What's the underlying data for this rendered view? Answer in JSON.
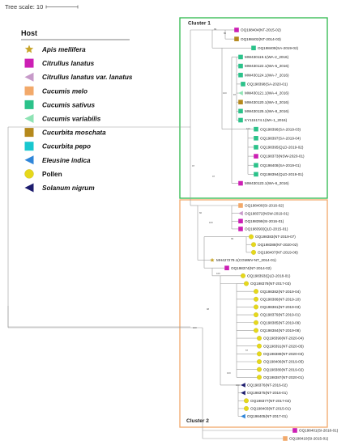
{
  "scale_label": "Tree scale: 10",
  "legend": {
    "title": "Host",
    "items": [
      {
        "label": "Apis mellifera",
        "shape": "star",
        "color": "#c8a52a",
        "italic": true
      },
      {
        "label": "Citrullus lanatus",
        "shape": "square",
        "color": "#cc1fb4",
        "italic": true
      },
      {
        "label": "Citrullus lanatus var. lanatus",
        "shape": "tri-left",
        "color": "#c79ac9",
        "italic": true
      },
      {
        "label": "Cucumis melo",
        "shape": "square",
        "color": "#f2a96a",
        "italic": true
      },
      {
        "label": "Cucumis sativus",
        "shape": "square",
        "color": "#2bc28a",
        "italic": true
      },
      {
        "label": "Cucumis variabilis",
        "shape": "tri-left",
        "color": "#8ee3b4",
        "italic": true
      },
      {
        "label": "Cucurbita moschata",
        "shape": "square",
        "color": "#b5891c",
        "italic": true
      },
      {
        "label": "Cucurbita pepo",
        "shape": "square",
        "color": "#19c7cf",
        "italic": true
      },
      {
        "label": "Eleusine indica",
        "shape": "tri-left",
        "color": "#2f86d9",
        "italic": true
      },
      {
        "label": "Pollen",
        "shape": "circle",
        "color": "#e6d81b",
        "italic": false
      },
      {
        "label": "Solanum nigrum",
        "shape": "tri-left",
        "color": "#1d1c6e",
        "italic": true
      }
    ]
  },
  "clusters": [
    {
      "label": "Cluster 1",
      "color": "#2db84b"
    },
    {
      "label": "Cluster 2",
      "color": "#f0a86a"
    }
  ],
  "tips": [
    {
      "label": "OQ198404(NT-2015-02)",
      "host": "Citrullus lanatus",
      "color": "#cc1fb4",
      "shape": "square"
    },
    {
      "label": "OQ198402(NT-2014-03)",
      "host": "Cucurbita moschata",
      "color": "#b5891c",
      "shape": "square"
    },
    {
      "label": "OQ198409(SA-2019-02)",
      "host": "Cucumis sativus",
      "color": "#2bc28a",
      "shape": "square"
    },
    {
      "label": "MW430119.1(WA-2_2016)",
      "host": "Cucumis sativus",
      "color": "#2bc28a",
      "shape": "square"
    },
    {
      "label": "MW430122.1(WA-5_2016)",
      "host": "Cucumis sativus",
      "color": "#2bc28a",
      "shape": "square"
    },
    {
      "label": "MW430124.1(WA-7_2016)",
      "host": "Cucumis sativus",
      "color": "#2bc28a",
      "shape": "square"
    },
    {
      "label": "OQ198398(SA-2020-01)",
      "host": "Cucumis sativus",
      "color": "#2bc28a",
      "shape": "square"
    },
    {
      "label": "MW430121.1(WA-4_2016)",
      "host": "Cucumis variabilis",
      "color": "#8ee3b4",
      "shape": "tri-left"
    },
    {
      "label": "MW430120.1(WA-3_2016)",
      "host": "Cucurbita moschata",
      "color": "#b5891c",
      "shape": "square"
    },
    {
      "label": "MW430125.1(WA-8_2016)",
      "host": "Cucumis sativus",
      "color": "#2bc28a",
      "shape": "square"
    },
    {
      "label": "KY115174.1(WA-1_2016)",
      "host": "Cucumis sativus",
      "color": "#2bc28a",
      "shape": "square"
    },
    {
      "label": "OQ198396(SA-2019-03)",
      "host": "Cucumis sativus",
      "color": "#2bc28a",
      "shape": "square"
    },
    {
      "label": "OQ198397(SA-2019-04)",
      "host": "Cucumis sativus",
      "color": "#2bc28a",
      "shape": "square"
    },
    {
      "label": "OQ198395(QLD-2019-02)",
      "host": "Cucumis sativus",
      "color": "#2bc28a",
      "shape": "square"
    },
    {
      "label": "OQ198373(NSW-2020-01)",
      "host": "Citrullus lanatus",
      "color": "#cc1fb4",
      "shape": "square"
    },
    {
      "label": "OQ198408(SA-2019-01)",
      "host": "Cucumis sativus",
      "color": "#2bc28a",
      "shape": "square"
    },
    {
      "label": "OQ198394(QLD-2019-01)",
      "host": "Cucumis sativus",
      "color": "#2bc28a",
      "shape": "square"
    },
    {
      "label": "MW430123.1(WA-6_2016)",
      "host": "Citrullus lanatus",
      "color": "#cc1fb4",
      "shape": "square"
    },
    {
      "label": "OQ198400(SI-2016-02)",
      "host": "Cucumis melo",
      "color": "#f2a96a",
      "shape": "square"
    },
    {
      "label": "OQ198372(NSW-2019-01)",
      "host": "Citrullus lanatus var. lanatus",
      "color": "#c79ac9",
      "shape": "tri-left"
    },
    {
      "label": "OQ198399(SI-2016-01)",
      "host": "Citrullus lanatus",
      "color": "#cc1fb4",
      "shape": "square"
    },
    {
      "label": "OQ198393(QLD-2015-01)",
      "host": "Citrullus lanatus",
      "color": "#cc1fb4",
      "shape": "square"
    },
    {
      "label": "OQ198383(NT-2019-07)",
      "host": "Pollen",
      "color": "#e6d81b",
      "shape": "circle"
    },
    {
      "label": "OQ198388(NT-2020-02)",
      "host": "Pollen",
      "color": "#e6d81b",
      "shape": "circle"
    },
    {
      "label": "OQ198407(NT-2019-06)",
      "host": "Pollen",
      "color": "#e6d81b",
      "shape": "circle"
    },
    {
      "label": "MH427279.1(CGMMV-NT_2014-01)",
      "host": "Apis mellifera",
      "color": "#c8a52a",
      "shape": "star"
    },
    {
      "label": "OQ198374(NT-2014-02)",
      "host": "Citrullus lanatus",
      "color": "#cc1fb4",
      "shape": "square"
    },
    {
      "label": "OQ198393(QLD-2018-01)",
      "host": "Pollen",
      "color": "#e6d81b",
      "shape": "circle"
    },
    {
      "label": "OQ198378(NT-2017-03)",
      "host": "Pollen",
      "color": "#e6d81b",
      "shape": "circle"
    },
    {
      "label": "OQ198382(NT-2019-04)",
      "host": "Pollen",
      "color": "#e6d81b",
      "shape": "circle"
    },
    {
      "label": "OQ198386(NT-2019-10)",
      "host": "Pollen",
      "color": "#e6d81b",
      "shape": "circle"
    },
    {
      "label": "OQ198381(NT-2019-03)",
      "host": "Pollen",
      "color": "#e6d81b",
      "shape": "circle"
    },
    {
      "label": "OQ198379(NT-2019-01)",
      "host": "Pollen",
      "color": "#e6d81b",
      "shape": "circle"
    },
    {
      "label": "OQ198385(NT-2019-09)",
      "host": "Pollen",
      "color": "#e6d81b",
      "shape": "circle"
    },
    {
      "label": "OQ198384(NT-2019-08)",
      "host": "Pollen",
      "color": "#e6d81b",
      "shape": "circle"
    },
    {
      "label": "OQ198390(NT-2020-04)",
      "host": "Pollen",
      "color": "#e6d81b",
      "shape": "circle"
    },
    {
      "label": "OQ198391(NT-2020-05)",
      "host": "Pollen",
      "color": "#e6d81b",
      "shape": "circle"
    },
    {
      "label": "OQ198389(NT-2020-03)",
      "host": "Pollen",
      "color": "#e6d81b",
      "shape": "circle"
    },
    {
      "label": "OQ198406(NT-2019-05)",
      "host": "Pollen",
      "color": "#e6d81b",
      "shape": "circle"
    },
    {
      "label": "OQ198380(NT-2019-02)",
      "host": "Pollen",
      "color": "#e6d81b",
      "shape": "circle"
    },
    {
      "label": "OQ198387(NT-2020-01)",
      "host": "Pollen",
      "color": "#e6d81b",
      "shape": "circle"
    },
    {
      "label": "OQ198376(NT-2016-02)",
      "host": "Solanum nigrum",
      "color": "#1d1c6e",
      "shape": "tri-left"
    },
    {
      "label": "OQ198375(NT-2016-01)",
      "host": "Solanum nigrum",
      "color": "#1d1c6e",
      "shape": "tri-left"
    },
    {
      "label": "OQ198377(NT-2017-02)",
      "host": "Pollen",
      "color": "#e6d81b",
      "shape": "circle"
    },
    {
      "label": "OQ198403(NT-2015-01)",
      "host": "Pollen",
      "color": "#e6d81b",
      "shape": "circle"
    },
    {
      "label": "OQ198405(NT-2017-01)",
      "host": "Eleusine indica",
      "color": "#2f86d9",
      "shape": "tri-left"
    },
    {
      "label": "OQ198401(SI-2018-01)",
      "host": "Citrullus lanatus",
      "color": "#cc1fb4",
      "shape": "square"
    },
    {
      "label": "OQ198410(SI-2015-01)",
      "host": "Cucumis melo",
      "color": "#f2a96a",
      "shape": "square"
    }
  ],
  "bootstrap_labels": [
    "97",
    "100",
    "99",
    "86",
    "87",
    "100",
    "97",
    "60",
    "100",
    "100",
    "98",
    "99",
    "57",
    "100",
    "100",
    "100"
  ]
}
